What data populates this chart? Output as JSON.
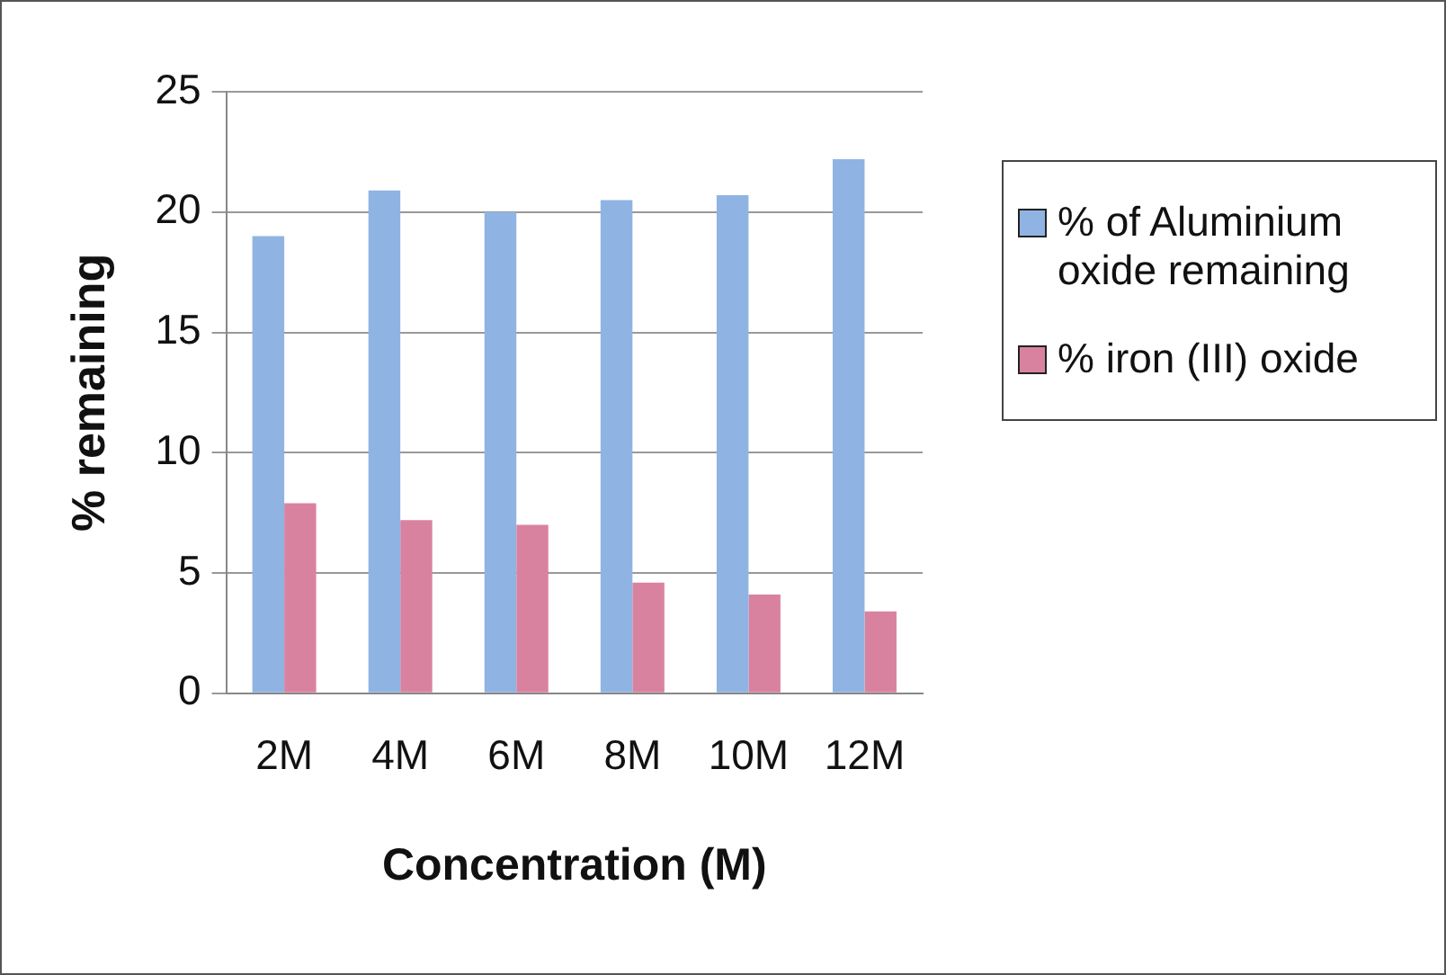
{
  "chart_data": {
    "type": "bar",
    "xlabel": "Concentration (M)",
    "ylabel": "% remaining",
    "categories": [
      "2M",
      "4M",
      "6M",
      "8M",
      "10M",
      "12M"
    ],
    "series": [
      {
        "name": "% of Aluminium oxide remaining",
        "color": "#8fb4e3",
        "values": [
          19.0,
          20.9,
          20.0,
          20.5,
          20.7,
          22.2
        ]
      },
      {
        "name": "% iron (III) oxide",
        "color": "#d9829f",
        "values": [
          7.9,
          7.2,
          7.0,
          4.6,
          4.1,
          3.4
        ]
      }
    ],
    "ylim": [
      0,
      25
    ],
    "yticks": [
      0,
      5,
      10,
      15,
      20,
      25
    ],
    "grid": "y",
    "legend": "right"
  }
}
